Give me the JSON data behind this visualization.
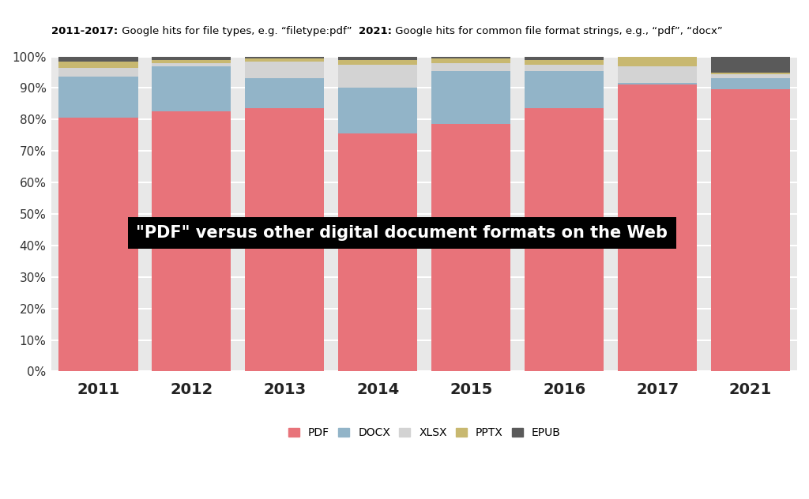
{
  "years": [
    "2011",
    "2012",
    "2013",
    "2014",
    "2015",
    "2016",
    "2017",
    "2021"
  ],
  "pdf": [
    80.5,
    82.5,
    83.5,
    75.5,
    78.5,
    83.5,
    91.0,
    89.5
  ],
  "docx": [
    13.0,
    14.5,
    9.5,
    14.5,
    17.0,
    12.0,
    0.5,
    3.5
  ],
  "xlsx": [
    3.0,
    1.0,
    5.5,
    7.5,
    2.5,
    2.0,
    5.5,
    1.5
  ],
  "pptx": [
    2.0,
    1.0,
    1.0,
    1.5,
    1.5,
    1.5,
    3.0,
    0.5
  ],
  "epub": [
    1.5,
    1.0,
    0.5,
    1.0,
    0.5,
    1.0,
    0.0,
    5.0
  ],
  "colors": {
    "pdf": "#E8737A",
    "docx": "#92B4C8",
    "xlsx": "#D3D3D3",
    "pptx": "#C8B870",
    "epub": "#5A5A5A"
  },
  "title": "\"PDF\" versus other digital document formats on the Web",
  "subtitle_bold1": "2011-2017:",
  "subtitle_reg1": " Google hits for file types, e.g. “filetype:pdf”  ",
  "subtitle_bold2": "2021:",
  "subtitle_reg2": " Google hits for common file format strings, e.g., “pdf”, “docx”",
  "yticks": [
    0,
    10,
    20,
    30,
    40,
    50,
    60,
    70,
    80,
    90,
    100
  ],
  "bar_width": 0.85,
  "bg_color": "#E8E8E8",
  "fig_bg": "#FFFFFF"
}
